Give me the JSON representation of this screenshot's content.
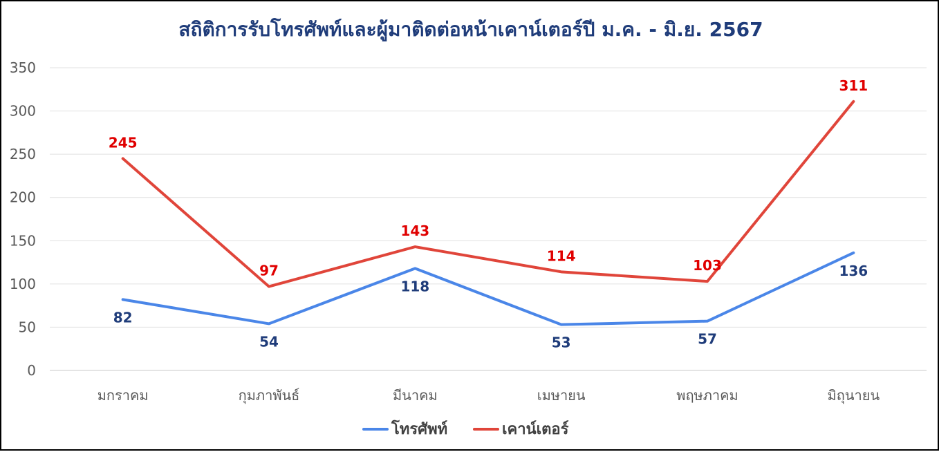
{
  "chart_data": {
    "type": "line",
    "title": "สถิติการรับโทรศัพท์และผู้มาติดต่อหน้าเคาน์เตอร์ปี ม.ค. - มิ.ย. 2567",
    "categories": [
      "มกราคม",
      "กุมภาพันธ์",
      "มีนาคม",
      "เมษายน",
      "พฤษภาคม",
      "มิถุนายน"
    ],
    "series": [
      {
        "name": "โทรศัพท์",
        "values": [
          82,
          54,
          118,
          53,
          57,
          136
        ],
        "color": "#4A86E8",
        "label_color": "#1F3C7A"
      },
      {
        "name": "เคาน์เตอร์",
        "values": [
          245,
          97,
          143,
          114,
          103,
          311
        ],
        "color": "#E0453A",
        "label_color": "#E00000"
      }
    ],
    "yticks": [
      "0",
      "50",
      "100",
      "150",
      "200",
      "250",
      "300",
      "350"
    ],
    "ylim": [
      0,
      350
    ],
    "grid": true,
    "legend_position": "bottom",
    "title_color": "#1F3C7A",
    "xlabel": "",
    "ylabel": ""
  }
}
